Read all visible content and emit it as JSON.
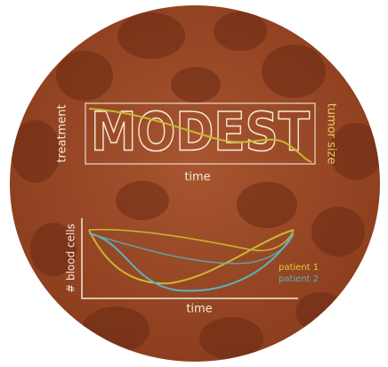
{
  "top_panel": {
    "title": "MODEST",
    "left_axis_label": "treatment",
    "right_axis_label": "tumor size",
    "x_axis_label": "time"
  },
  "bottom_panel": {
    "y_axis_label": "# blood cells",
    "x_axis_label": "time",
    "legend": [
      "patient 1",
      "patient 2"
    ]
  }
}
